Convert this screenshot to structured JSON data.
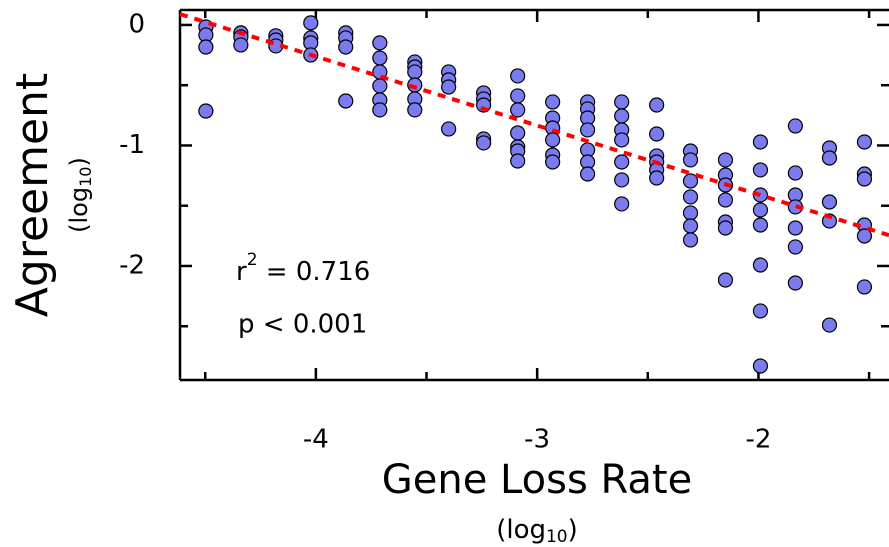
{
  "chart_data": {
    "type": "scatter",
    "x_label": "Gene Loss Rate",
    "x_unit": {
      "base": "(log",
      "sub": "10",
      "end": ")"
    },
    "y_label": "Agreement",
    "y_unit": {
      "base": "(log",
      "sub": "10",
      "end": ")"
    },
    "xlim": [
      -4.614,
      -1.41
    ],
    "ylim": [
      -2.946,
      0.124
    ],
    "xticks": [
      -4,
      -3,
      -2
    ],
    "yticks": [
      0,
      -1,
      -2
    ],
    "xminorticks": [
      -4.5,
      -3.5,
      -2.5,
      -1.5
    ],
    "yminorticks": [
      -0.5,
      -1.5,
      -2.5
    ],
    "annotations": [
      {
        "base": "r",
        "sup": "2",
        "text": " = 0.716"
      },
      {
        "text": "p < 0.001"
      }
    ],
    "trend": {
      "color": "#ff0000",
      "x": [
        -4.614,
        -1.41
      ],
      "y": [
        0.09,
        -1.745
      ]
    },
    "series": [
      {
        "color": "#7b7bf0",
        "x": [
          -4.497,
          -4.497,
          -4.497,
          -4.497,
          -4.339,
          -4.339,
          -4.339,
          -4.181,
          -4.181,
          -4.181,
          -4.023,
          -4.023,
          -4.023,
          -4.023,
          -3.865,
          -3.865,
          -3.865,
          -3.865,
          -3.711,
          -3.711,
          -3.711,
          -3.711,
          -3.711,
          -3.711,
          -3.553,
          -3.553,
          -3.553,
          -3.553,
          -3.553,
          -3.553,
          -3.4,
          -3.4,
          -3.4,
          -3.4,
          -3.242,
          -3.242,
          -3.242,
          -3.242,
          -3.242,
          -3.088,
          -3.088,
          -3.088,
          -3.088,
          -3.088,
          -3.088,
          -3.088,
          -2.93,
          -2.93,
          -2.93,
          -2.93,
          -2.93,
          -2.93,
          -2.772,
          -2.772,
          -2.772,
          -2.772,
          -2.772,
          -2.772,
          -2.772,
          -2.618,
          -2.618,
          -2.618,
          -2.618,
          -2.618,
          -2.618,
          -2.618,
          -2.46,
          -2.46,
          -2.46,
          -2.46,
          -2.46,
          -2.46,
          -2.307,
          -2.307,
          -2.307,
          -2.307,
          -2.307,
          -2.307,
          -2.307,
          -2.149,
          -2.149,
          -2.149,
          -2.149,
          -2.149,
          -2.149,
          -2.149,
          -1.991,
          -1.991,
          -1.991,
          -1.991,
          -1.991,
          -1.991,
          -1.991,
          -1.991,
          -1.833,
          -1.833,
          -1.833,
          -1.833,
          -1.833,
          -1.833,
          -1.833,
          -1.679,
          -1.679,
          -1.679,
          -1.679,
          -1.679,
          -1.521,
          -1.521,
          -1.521,
          -1.521,
          -1.521,
          -1.521
        ],
        "y": [
          -0.017,
          -0.083,
          -0.183,
          -0.714,
          -0.066,
          -0.1,
          -0.166,
          -0.09,
          -0.125,
          -0.174,
          0.017,
          -0.108,
          -0.149,
          -0.249,
          -0.066,
          -0.108,
          -0.183,
          -0.631,
          -0.149,
          -0.274,
          -0.39,
          -0.506,
          -0.622,
          -0.705,
          -0.307,
          -0.349,
          -0.39,
          -0.498,
          -0.614,
          -0.705,
          -0.39,
          -0.456,
          -0.515,
          -0.863,
          -0.564,
          -0.614,
          -0.664,
          -0.946,
          -0.979,
          -0.423,
          -0.589,
          -0.705,
          -0.896,
          -1.012,
          -1.046,
          -1.129,
          -0.639,
          -0.772,
          -0.855,
          -0.954,
          -1.079,
          -1.137,
          -0.639,
          -0.697,
          -0.772,
          -0.871,
          -1.037,
          -1.137,
          -1.237,
          -0.639,
          -0.755,
          -0.871,
          -0.954,
          -1.137,
          -1.286,
          -1.485,
          -0.664,
          -0.905,
          -1.087,
          -1.137,
          -1.203,
          -1.27,
          -1.046,
          -1.12,
          -1.295,
          -1.427,
          -1.56,
          -1.668,
          -1.784,
          -1.12,
          -1.245,
          -1.328,
          -1.452,
          -1.635,
          -1.685,
          -2.116,
          -0.971,
          -1.203,
          -1.411,
          -1.535,
          -1.66,
          -1.992,
          -2.373,
          -2.83,
          -0.838,
          -1.228,
          -1.411,
          -1.51,
          -1.685,
          -1.842,
          -2.141,
          -1.021,
          -1.104,
          -1.469,
          -1.627,
          -2.49,
          -0.971,
          -1.237,
          -1.278,
          -1.66,
          -1.751,
          -2.174
        ]
      }
    ]
  }
}
